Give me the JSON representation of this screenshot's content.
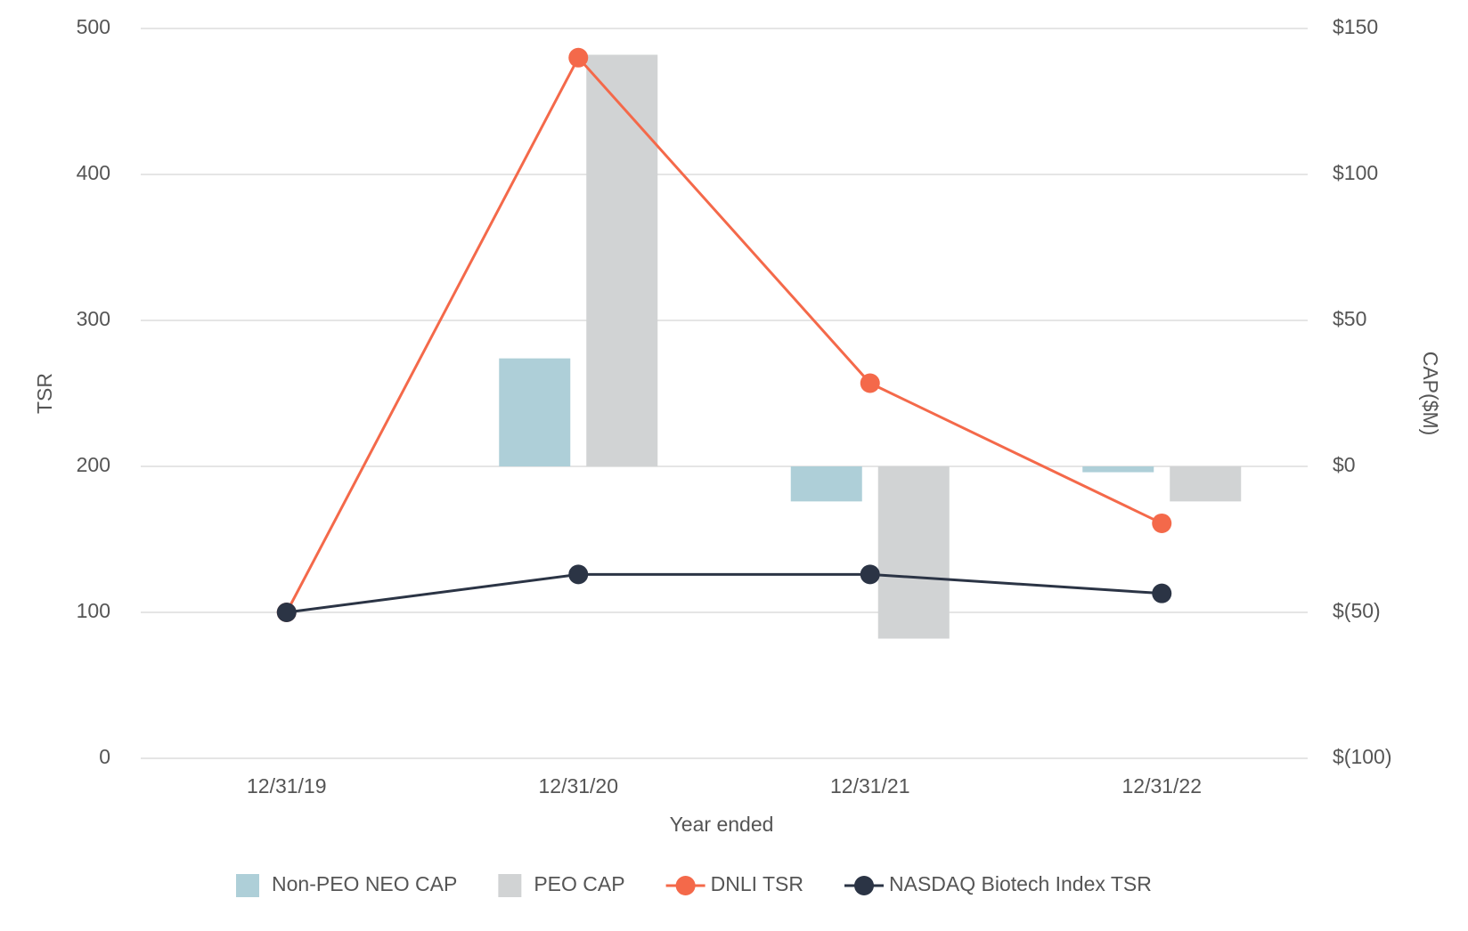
{
  "chart_data": {
    "type": "bar_line",
    "x_label": "Year ended",
    "y_label": "TSR",
    "y2_label": "CAP($M)",
    "categories": [
      "12/31/19",
      "12/31/20",
      "12/31/21",
      "12/31/22"
    ],
    "series": [
      {
        "name": "Non-PEO NEO CAP",
        "type": "bar",
        "axis": "y2",
        "color": "#aecfd8",
        "values": [
          null,
          37,
          -12,
          -2
        ]
      },
      {
        "name": "PEO CAP",
        "type": "bar",
        "axis": "y2",
        "color": "#d1d3d4",
        "values": [
          null,
          141,
          -59,
          -12
        ]
      },
      {
        "name": "DNLI TSR",
        "type": "line",
        "axis": "y",
        "color": "#f4694a",
        "values": [
          100,
          480,
          257,
          161
        ]
      },
      {
        "name": "NASDAQ Biotech Index TSR",
        "type": "line",
        "axis": "y",
        "color": "#2b3445",
        "values": [
          100,
          126,
          126,
          113
        ]
      }
    ],
    "ylim": [
      0,
      500
    ],
    "yticks": [
      0,
      100,
      200,
      300,
      400,
      500
    ],
    "y2lim": [
      -100,
      150
    ],
    "y2ticks": [
      {
        "value": -100,
        "label": "$(100)"
      },
      {
        "value": -50,
        "label": "$(50)"
      },
      {
        "value": 0,
        "label": "$0"
      },
      {
        "value": 50,
        "label": "$50"
      },
      {
        "value": 100,
        "label": "$100"
      },
      {
        "value": 150,
        "label": "$150"
      }
    ],
    "grid": true,
    "legend": "bottom"
  }
}
